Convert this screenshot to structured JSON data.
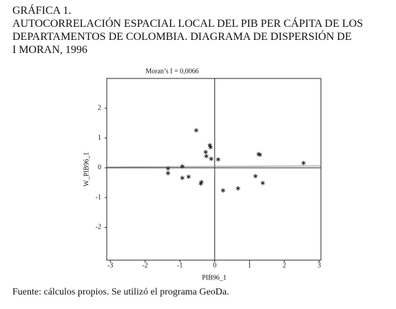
{
  "header": {
    "label": "GRÁFICA 1.",
    "title_lines": [
      "AUTOCORRELACIÓN ESPACIAL LOCAL DEL PIB PER CÁPITA DE LOS",
      "DEPARTAMENTOS DE COLOMBIA. DIAGRAMA DE DISPERSIÓN DE",
      "I MORAN, 1996"
    ]
  },
  "chart_data": {
    "type": "scatter",
    "subtitle": "Moran’s I = 0,0066",
    "regression_slope": 0.0066,
    "x_label": "PIB96_1",
    "y_label": "W_PIB96_1",
    "color": "#222",
    "x": [
      -0.53,
      -0.14,
      -0.12,
      -0.26,
      -0.24,
      -0.1,
      0.1,
      -1.34,
      -1.34,
      -0.93,
      -0.93,
      -0.75,
      -0.38,
      -0.4,
      0.24,
      0.67,
      1.17,
      1.38,
      1.26,
      1.3,
      2.55
    ],
    "values": [
      1.26,
      0.76,
      0.69,
      0.53,
      0.39,
      0.3,
      0.28,
      -0.02,
      -0.18,
      0.05,
      -0.34,
      -0.3,
      -0.48,
      -0.53,
      -0.76,
      -0.69,
      -0.28,
      -0.51,
      0.46,
      0.44,
      0.16
    ],
    "xlim": [
      -3.1,
      3.05
    ],
    "ylim": [
      -3.1,
      3.0
    ],
    "xticks": [
      -3,
      -2,
      -1,
      0,
      1,
      2,
      3
    ],
    "yticks": [
      -2,
      -1,
      0,
      1,
      2
    ]
  },
  "footer": {
    "source": "Fuente: cálculos propios. Se utilizó el programa GeoDa."
  }
}
